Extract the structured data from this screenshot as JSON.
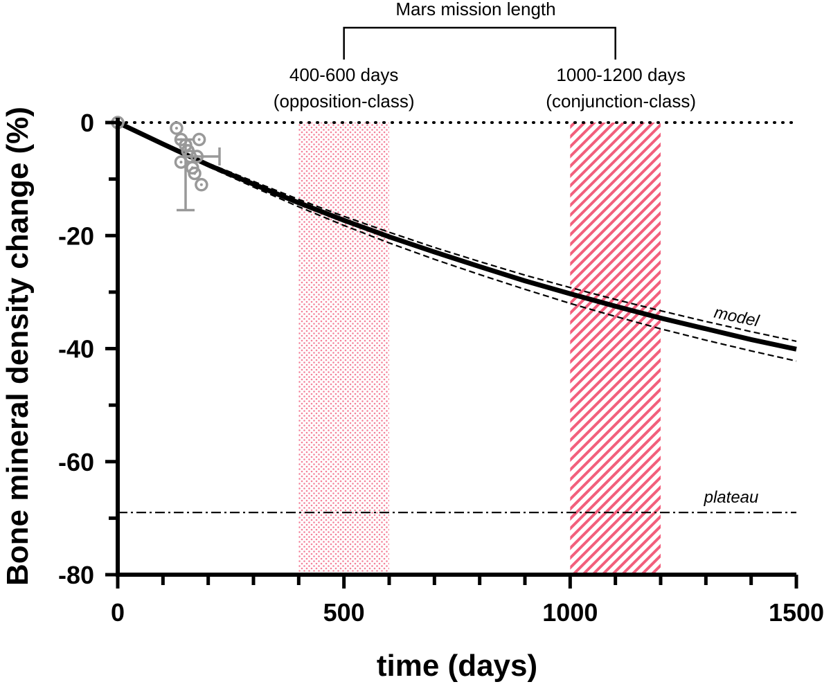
{
  "chart_data": {
    "type": "line",
    "xlabel": "time (days)",
    "ylabel": "Bone mineral density change (%)",
    "xlim": [
      0,
      1500
    ],
    "ylim": [
      -80,
      0
    ],
    "x_ticks_labeled": [
      0,
      500,
      1000,
      1500
    ],
    "y_ticks_labeled": [
      0,
      -20,
      -40,
      -60,
      -80
    ],
    "grid": false,
    "colors": {
      "model": "#000000",
      "observed": "#999999",
      "opposition_band": "#f4829a",
      "conjunction_band": "#f25f7c"
    },
    "series": [
      {
        "name": "model",
        "style": "solid-thick",
        "x": [
          0,
          100,
          200,
          300,
          400,
          500,
          600,
          700,
          800,
          900,
          1000,
          1100,
          1200,
          1300,
          1400,
          1500
        ],
        "y": [
          0,
          -3.8,
          -7.5,
          -10.9,
          -14.2,
          -17.3,
          -20.2,
          -22.9,
          -25.5,
          -28.0,
          -30.3,
          -32.5,
          -34.6,
          -36.5,
          -38.4,
          -40.1
        ]
      },
      {
        "style": "dashed",
        "x": [
          200,
          300,
          400,
          500,
          600,
          700,
          800,
          900,
          1000,
          1100,
          1200,
          1300,
          1400,
          1500
        ],
        "y": [
          -7.2,
          -10.4,
          -13.6,
          -16.6,
          -19.4,
          -22.1,
          -24.6,
          -27.0,
          -29.2,
          -31.3,
          -33.3,
          -35.2,
          -37.0,
          -38.7
        ]
      },
      {
        "style": "dashed",
        "x": [
          200,
          300,
          400,
          500,
          600,
          700,
          800,
          900,
          1000,
          1100,
          1200,
          1300,
          1400,
          1500
        ],
        "y": [
          -7.8,
          -11.4,
          -14.9,
          -18.2,
          -21.3,
          -24.2,
          -26.9,
          -29.5,
          -32.0,
          -34.3,
          -36.5,
          -38.5,
          -40.4,
          -42.2
        ]
      },
      {
        "name": "plateau",
        "style": "dash-dot",
        "x": [
          0,
          1500
        ],
        "y": [
          -69,
          -69
        ]
      },
      {
        "style": "dotted",
        "x": [
          0,
          1500
        ],
        "y": [
          0,
          0
        ]
      }
    ],
    "observed_points": {
      "x": [
        0,
        130,
        140,
        150,
        155,
        160,
        165,
        170,
        175,
        180,
        185,
        140,
        155
      ],
      "y": [
        0,
        -1,
        -3,
        -4,
        -5,
        -6,
        -8,
        -9,
        -6,
        -3,
        -11,
        -7,
        -5
      ]
    },
    "error_bars": [
      {
        "x": 150,
        "y": -9,
        "ylow": -15.5,
        "yhigh": -3
      },
      {
        "x": 180,
        "y": -6,
        "xlow": 140,
        "xhigh": 225
      }
    ],
    "bands": [
      {
        "x0": 400,
        "x1": 600,
        "pattern": "dots",
        "label_line1": "400-600 days",
        "label_line2": "(opposition-class)"
      },
      {
        "x0": 1000,
        "x1": 1200,
        "pattern": "hatch",
        "label_line1": "1000-1200 days",
        "label_line2": "(conjunction-class)"
      }
    ],
    "bracket": {
      "label": "Mars mission length",
      "x0": 500,
      "x1": 1100
    }
  }
}
